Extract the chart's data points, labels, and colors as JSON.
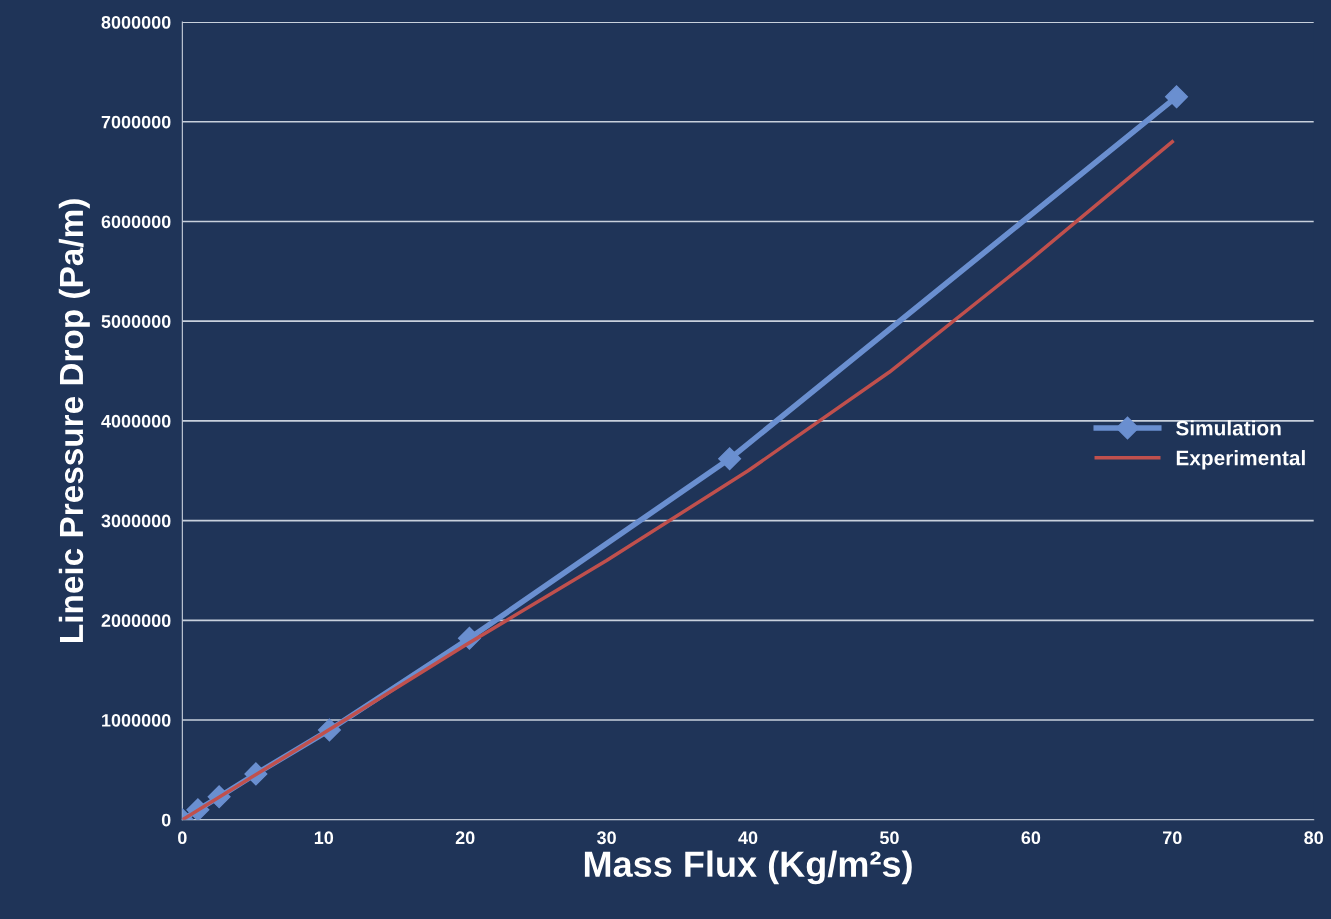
{
  "chart_data": {
    "type": "line",
    "xlabel": "Mass Flux (Kg/m²s)",
    "ylabel": "Lineic Pressure Drop (Pa/m)",
    "xlim": [
      0,
      80
    ],
    "xticks": [
      0,
      10,
      20,
      30,
      40,
      50,
      60,
      70,
      80
    ],
    "ylim": [
      0,
      8000000
    ],
    "yticks": [
      0,
      1000000,
      2000000,
      3000000,
      4000000,
      5000000,
      6000000,
      7000000,
      8000000
    ],
    "grid": "y",
    "legend": "right",
    "series": [
      {
        "name": "Simulation",
        "color": "#6a8fd0",
        "marker": "diamond",
        "x": [
          0,
          1.1,
          2.6,
          5.2,
          10.4,
          20.3,
          38.7,
          70.3
        ],
        "values": [
          0,
          100000,
          230000,
          460000,
          900000,
          1820000,
          3620000,
          7250000
        ]
      },
      {
        "name": "Experimental",
        "color": "#c0504d",
        "marker": "none",
        "x": [
          0,
          10,
          20,
          30,
          40,
          50,
          60,
          70
        ],
        "values": [
          0,
          870000,
          1750000,
          2600000,
          3500000,
          4490000,
          5620000,
          6800000
        ]
      }
    ]
  }
}
